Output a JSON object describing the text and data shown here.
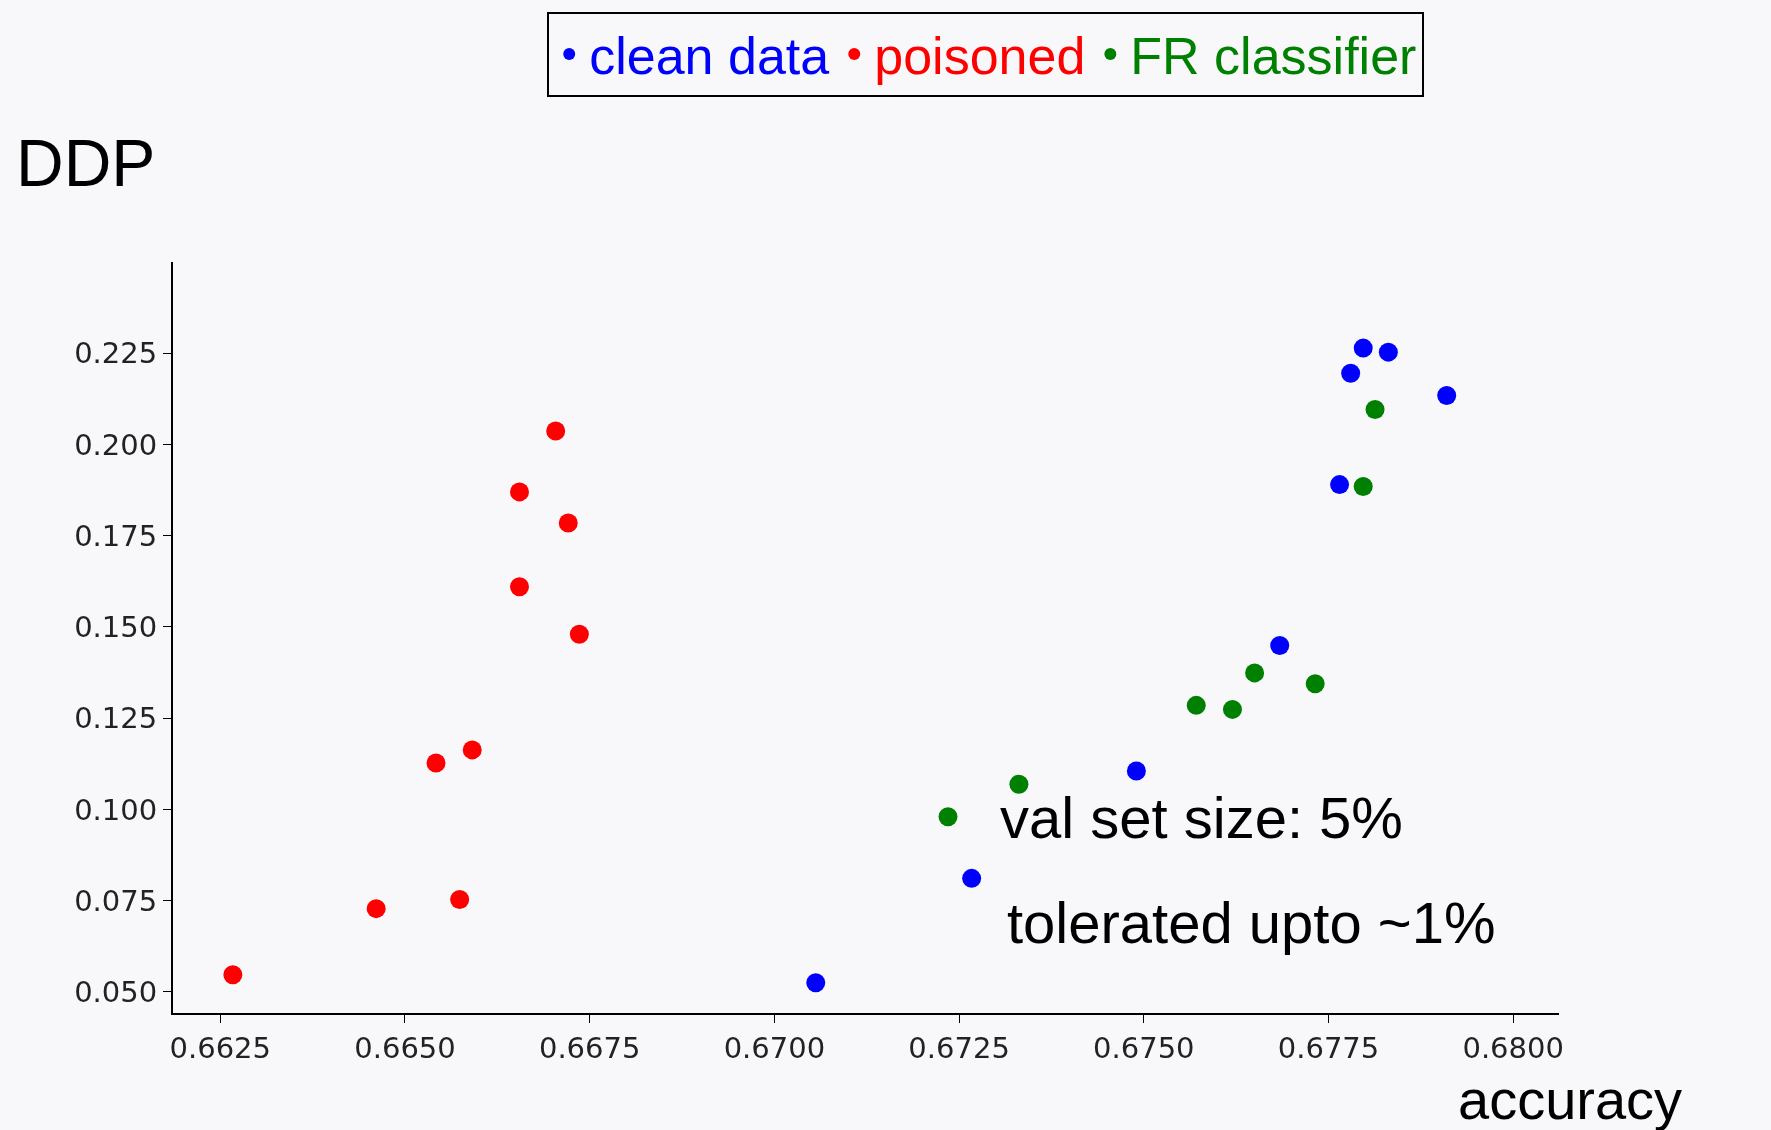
{
  "chart_data": {
    "type": "scatter",
    "xlabel": "accuracy",
    "ylabel": "DDP",
    "xlim": [
      0.66186,
      0.68062
    ],
    "ylim": [
      0.0442,
      0.25
    ],
    "xticks": [
      {
        "value": 0.6625,
        "label": "0.6625"
      },
      {
        "value": 0.665,
        "label": "0.6650"
      },
      {
        "value": 0.6675,
        "label": "0.6675"
      },
      {
        "value": 0.67,
        "label": "0.6700"
      },
      {
        "value": 0.6725,
        "label": "0.6725"
      },
      {
        "value": 0.675,
        "label": "0.6750"
      },
      {
        "value": 0.6775,
        "label": "0.6775"
      },
      {
        "value": 0.68,
        "label": "0.6800"
      }
    ],
    "yticks": [
      {
        "value": 0.05,
        "label": "0.050"
      },
      {
        "value": 0.075,
        "label": "0.075"
      },
      {
        "value": 0.1,
        "label": "0.100"
      },
      {
        "value": 0.125,
        "label": "0.125"
      },
      {
        "value": 0.15,
        "label": "0.150"
      },
      {
        "value": 0.175,
        "label": "0.175"
      },
      {
        "value": 0.2,
        "label": "0.200"
      },
      {
        "value": 0.225,
        "label": "0.225"
      }
    ],
    "grid": false,
    "legend": "top",
    "marker": "circle",
    "annotations": [
      "val set size: 5%",
      "tolerated upto ~1%"
    ],
    "series": [
      {
        "name": "clean data",
        "color": "#0000ff",
        "x": [
          0.67056,
          0.67267,
          0.6749,
          0.67684,
          0.67765,
          0.6778,
          0.67797,
          0.67831,
          0.6791
        ],
        "values": [
          0.0525,
          0.0811,
          0.1105,
          0.1449,
          0.189,
          0.2195,
          0.2264,
          0.2253,
          0.2134
        ]
      },
      {
        "name": "poisoned",
        "color": "#ff0000",
        "x": [
          0.66267,
          0.66461,
          0.66574,
          0.66542,
          0.66591,
          0.66655,
          0.66736,
          0.66655,
          0.66721,
          0.66704
        ],
        "values": [
          0.0547,
          0.0728,
          0.0753,
          0.1127,
          0.1163,
          0.161,
          0.148,
          0.187,
          0.1785,
          0.2037
        ]
      },
      {
        "name": "FR classifier",
        "color": "#008000",
        "x": [
          0.67235,
          0.67331,
          0.67571,
          0.6762,
          0.6765,
          0.67732,
          0.67797,
          0.67813
        ],
        "values": [
          0.098,
          0.1069,
          0.1285,
          0.1274,
          0.1374,
          0.1344,
          0.1885,
          0.2096
        ]
      }
    ]
  }
}
